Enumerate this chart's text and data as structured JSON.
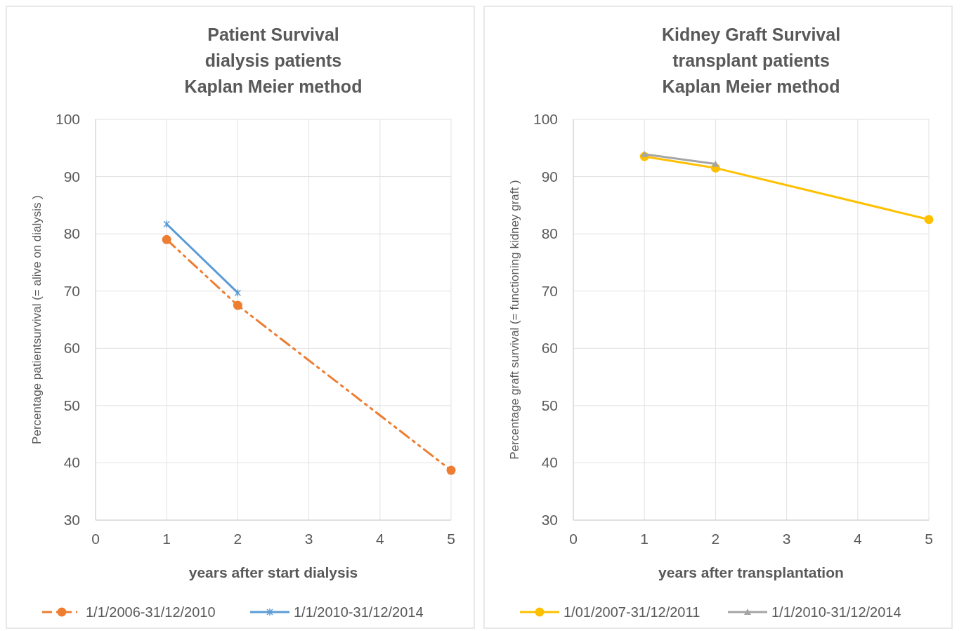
{
  "chart_data": [
    {
      "type": "line",
      "title": "Patient Survival\ndialysis patients\nKaplan Meier method",
      "xlabel": "years after start dialysis",
      "ylabel": "Percentage patientsurvival (= alive on dialysis )",
      "xlim": [
        0,
        5
      ],
      "xticks": [
        0,
        1,
        2,
        3,
        4,
        5
      ],
      "ylim": [
        30,
        100
      ],
      "yticks": [
        30,
        40,
        50,
        60,
        70,
        80,
        90,
        100
      ],
      "grid": true,
      "legend": "bottom",
      "series": [
        {
          "name": "1/1/2006-31/12/2010",
          "color": "#ed7d31",
          "x": [
            1,
            2,
            5
          ],
          "values": [
            79.0,
            67.5,
            38.7
          ],
          "marker": "circle",
          "line_style": "dashed"
        },
        {
          "name": "1/1/2010-31/12/2014",
          "color": "#5b9bd5",
          "x": [
            1,
            2
          ],
          "values": [
            81.7,
            69.7
          ],
          "marker": "cross",
          "line_style": "solid"
        }
      ]
    },
    {
      "type": "line",
      "title": "Kidney Graft  Survival\ntransplant patients\nKaplan Meier method",
      "xlabel": "years after transplantation",
      "ylabel": "Percentage graft survival (= functioning kidney graft )",
      "xlim": [
        0,
        5
      ],
      "xticks": [
        0,
        1,
        2,
        3,
        4,
        5
      ],
      "ylim": [
        30,
        100
      ],
      "yticks": [
        30,
        40,
        50,
        60,
        70,
        80,
        90,
        100
      ],
      "grid": true,
      "legend": "bottom",
      "series": [
        {
          "name": "1/01/2007-31/12/2011",
          "color": "#ffc000",
          "x": [
            1,
            2,
            5
          ],
          "values": [
            93.5,
            91.5,
            82.5
          ],
          "marker": "circle",
          "line_style": "solid"
        },
        {
          "name": "1/1/2010-31/12/2014",
          "color": "#a5a5a5",
          "x": [
            1,
            2
          ],
          "values": [
            93.9,
            92.2
          ],
          "marker": "triangle",
          "line_style": "solid"
        }
      ]
    }
  ]
}
